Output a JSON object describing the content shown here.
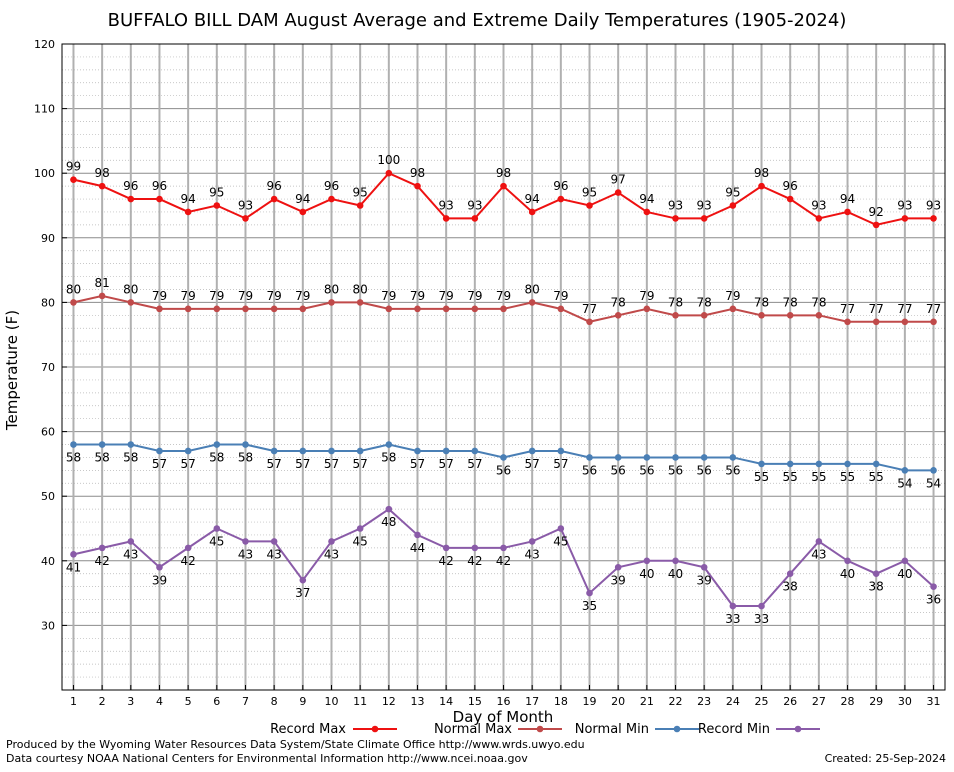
{
  "chart_data": {
    "type": "line",
    "title": "BUFFALO BILL DAM August Average and Extreme Daily Temperatures (1905-2024)",
    "xlabel": "Day of Month",
    "ylabel": "Temperature (F)",
    "ylim": [
      20,
      120
    ],
    "xlim": [
      0.6,
      31.4
    ],
    "yticks": [
      30,
      40,
      50,
      60,
      70,
      80,
      90,
      100,
      110,
      120
    ],
    "x": [
      1,
      2,
      3,
      4,
      5,
      6,
      7,
      8,
      9,
      10,
      11,
      12,
      13,
      14,
      15,
      16,
      17,
      18,
      19,
      20,
      21,
      22,
      23,
      24,
      25,
      26,
      27,
      28,
      29,
      30,
      31
    ],
    "grid": true,
    "legend_position": "bottom",
    "series": [
      {
        "name": "Record Max",
        "color": "#ee1111",
        "label_position": "above",
        "values": [
          99,
          98,
          96,
          96,
          94,
          95,
          93,
          96,
          94,
          96,
          95,
          100,
          98,
          93,
          93,
          98,
          94,
          96,
          95,
          97,
          94,
          93,
          93,
          95,
          98,
          96,
          93,
          94,
          92,
          93,
          93
        ]
      },
      {
        "name": "Normal Max",
        "color": "#c04a4a",
        "label_position": "above",
        "values": [
          80,
          81,
          80,
          79,
          79,
          79,
          79,
          79,
          79,
          80,
          80,
          79,
          79,
          79,
          79,
          79,
          80,
          79,
          77,
          78,
          79,
          78,
          78,
          79,
          78,
          78,
          78,
          77,
          77,
          77,
          77
        ]
      },
      {
        "name": "Normal Min",
        "color": "#4a7fb5",
        "label_position": "below",
        "values": [
          58,
          58,
          58,
          57,
          57,
          58,
          58,
          57,
          57,
          57,
          57,
          58,
          57,
          57,
          57,
          56,
          57,
          57,
          56,
          56,
          56,
          56,
          56,
          56,
          55,
          55,
          55,
          55,
          55,
          54,
          54
        ]
      },
      {
        "name": "Record Min",
        "color": "#8a5ba8",
        "label_position": "below",
        "values": [
          41,
          42,
          43,
          39,
          42,
          45,
          43,
          43,
          37,
          43,
          45,
          48,
          44,
          42,
          42,
          42,
          43,
          45,
          35,
          39,
          40,
          40,
          39,
          33,
          33,
          38,
          43,
          40,
          38,
          40,
          36
        ]
      }
    ]
  },
  "footer": {
    "produced_by": "Produced by the Wyoming Water Resources Data System/State Climate Office http://www.wrds.uwyo.edu",
    "courtesy": "Data courtesy NOAA National Centers for Environmental Information http://www.ncei.noaa.gov",
    "created": "Created:  25-Sep-2024"
  }
}
